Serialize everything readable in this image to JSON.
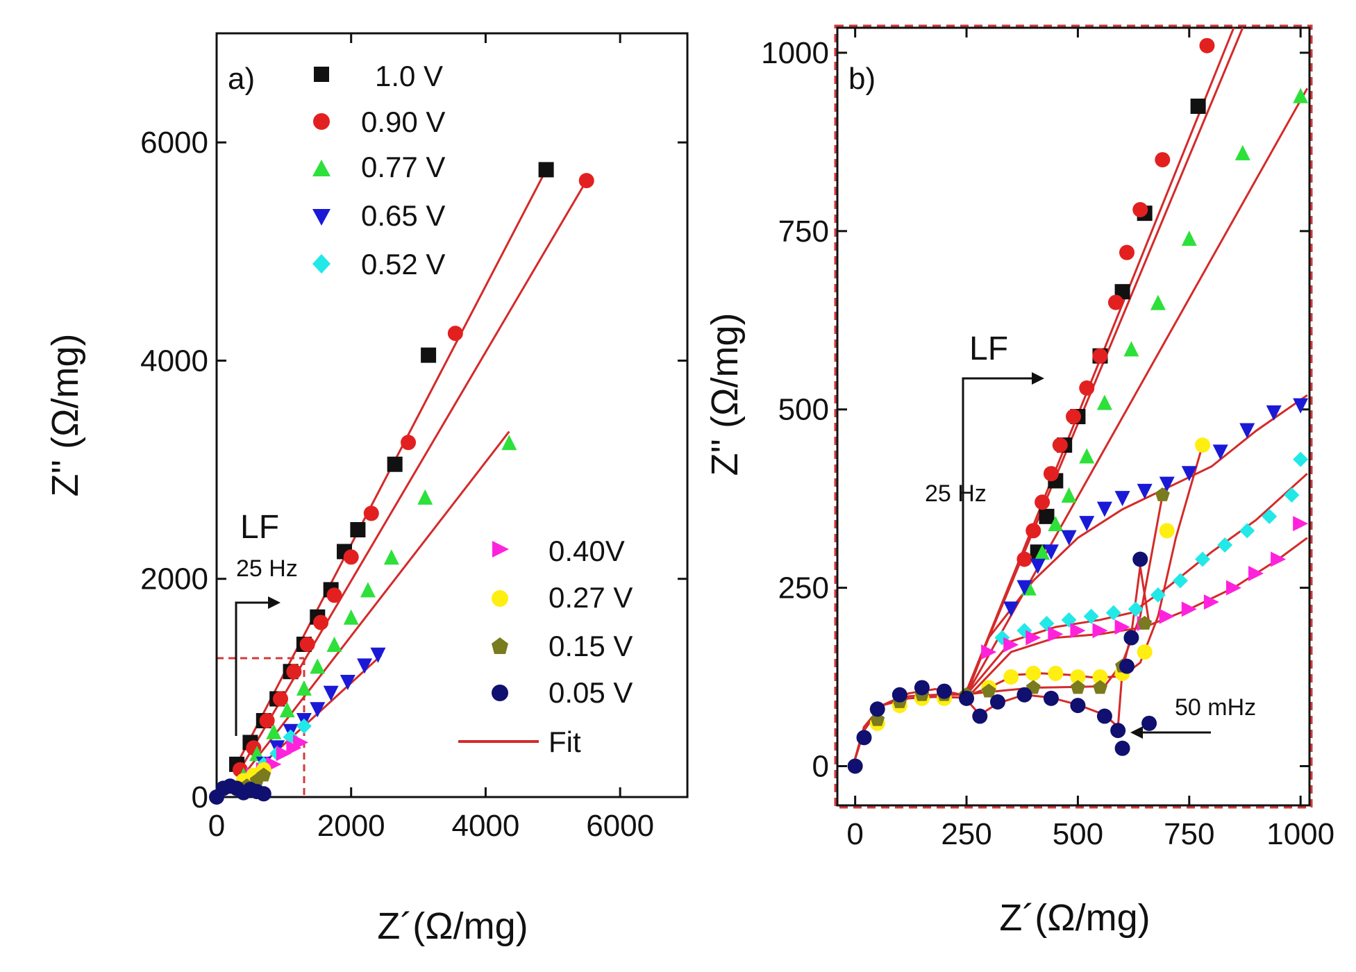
{
  "colors": {
    "fit": "#d42a2a",
    "s_1_0": "#111111",
    "s_0_90": "#e32020",
    "s_0_77": "#2ee03a",
    "s_0_65": "#1a1ad6",
    "s_0_52": "#22e8e8",
    "s_0_40": "#ff22dd",
    "s_0_27": "#ffee11",
    "s_0_15": "#7a7a1e",
    "s_0_05": "#101070",
    "dash": "#d33a3a"
  },
  "chart_data": [
    {
      "id": "a",
      "type": "scatter",
      "panel_label": "a)",
      "xlabel": "Z´(Ω/mg)",
      "ylabel": "Z'' (Ω/mg)",
      "xlim": [
        0,
        7000
      ],
      "ylim": [
        0,
        7000
      ],
      "xticks": [
        0,
        2000,
        4000,
        6000
      ],
      "yticks": [
        0,
        2000,
        4000,
        6000
      ],
      "xtick_labels": [
        "0",
        "2000",
        "4000",
        "6000"
      ],
      "ytick_labels": [
        "0",
        "2000",
        "4000",
        "6000"
      ],
      "legend_top": [
        "1.0 V",
        "0.90 V",
        "0.77 V",
        "0.65 V",
        "0.52 V"
      ],
      "legend_bottom": [
        "0.40V",
        "0.27 V",
        "0.15 V",
        "0.05 V",
        "Fit"
      ],
      "annotations": {
        "lf": "LF",
        "freq": "25 Hz"
      },
      "series": [
        {
          "name": "1.0 V",
          "marker": "square",
          "x": [
            300,
            500,
            700,
            900,
            1100,
            1300,
            1500,
            1700,
            1900,
            2100,
            2650,
            3150,
            4900
          ],
          "y": [
            300,
            500,
            700,
            900,
            1150,
            1400,
            1650,
            1900,
            2250,
            2450,
            3050,
            4050,
            5750
          ]
        },
        {
          "name": "0.90 V",
          "marker": "circle",
          "x": [
            350,
            550,
            750,
            950,
            1150,
            1350,
            1550,
            1750,
            2000,
            2300,
            2850,
            3550,
            5500
          ],
          "y": [
            250,
            450,
            700,
            900,
            1150,
            1400,
            1600,
            1850,
            2200,
            2600,
            3250,
            4250,
            5650
          ]
        },
        {
          "name": "0.77 V",
          "marker": "triangle-up",
          "x": [
            400,
            600,
            850,
            1050,
            1300,
            1500,
            1750,
            2000,
            2250,
            2600,
            3100,
            4350
          ],
          "y": [
            200,
            400,
            600,
            800,
            1000,
            1200,
            1400,
            1650,
            1900,
            2200,
            2750,
            3250
          ]
        },
        {
          "name": "0.65 V",
          "marker": "triangle-down",
          "x": [
            500,
            700,
            900,
            1100,
            1300,
            1500,
            1700,
            1950,
            2200,
            2400
          ],
          "y": [
            150,
            300,
            450,
            600,
            700,
            800,
            950,
            1050,
            1200,
            1300
          ]
        },
        {
          "name": "0.52 V",
          "marker": "diamond",
          "x": [
            500,
            700,
            900,
            1100,
            1300
          ],
          "y": [
            200,
            300,
            400,
            550,
            650
          ]
        },
        {
          "name": "0.40V",
          "marker": "triangle-right",
          "x": [
            550,
            700,
            850,
            1000,
            1150,
            1250
          ],
          "y": [
            200,
            250,
            300,
            400,
            450,
            500
          ]
        },
        {
          "name": "0.27 V",
          "marker": "circle",
          "x": [
            400,
            550,
            700
          ],
          "y": [
            150,
            200,
            250
          ]
        },
        {
          "name": "0.15 V",
          "marker": "pentagon",
          "x": [
            450,
            600,
            700
          ],
          "y": [
            100,
            150,
            200
          ]
        },
        {
          "name": "0.05 V",
          "marker": "circle",
          "x": [
            0,
            100,
            200,
            300,
            400,
            500,
            600,
            700
          ],
          "y": [
            0,
            80,
            100,
            80,
            40,
            70,
            50,
            30
          ]
        }
      ],
      "fits": [
        {
          "name": "Fit 1.0 V",
          "x": [
            300,
            4900
          ],
          "y": [
            300,
            5750
          ]
        },
        {
          "name": "Fit 0.90 V",
          "x": [
            300,
            5500
          ],
          "y": [
            200,
            5650
          ]
        },
        {
          "name": "Fit 0.77 V",
          "x": [
            400,
            4350
          ],
          "y": [
            200,
            3350
          ]
        },
        {
          "name": "Fit 0.65 V",
          "x": [
            500,
            2450
          ],
          "y": [
            200,
            1300
          ]
        }
      ]
    },
    {
      "id": "b",
      "type": "scatter",
      "panel_label": "b)",
      "xlabel": "Z´(Ω/mg)",
      "ylabel": "Z'' (Ω/mg)",
      "xlim": [
        -40,
        1020
      ],
      "ylim": [
        -55,
        1035
      ],
      "xticks": [
        0,
        250,
        500,
        750,
        1000
      ],
      "yticks": [
        0,
        250,
        500,
        750,
        1000
      ],
      "xtick_labels": [
        "0",
        "250",
        "500",
        "750",
        "1000"
      ],
      "ytick_labels": [
        "0",
        "250",
        "500",
        "750",
        "1000"
      ],
      "annotations": {
        "lf": "LF",
        "freq_hf": "25 Hz",
        "freq_lf": "50 mHz"
      },
      "series": [
        {
          "name": "1.0 V",
          "marker": "square",
          "x": [
            410,
            430,
            450,
            470,
            500,
            550,
            600,
            650,
            770
          ],
          "y": [
            300,
            350,
            400,
            450,
            490,
            575,
            665,
            775,
            925
          ]
        },
        {
          "name": "0.90 V",
          "marker": "circle",
          "x": [
            380,
            400,
            420,
            440,
            460,
            490,
            520,
            550,
            585,
            610,
            640,
            690,
            790
          ],
          "y": [
            290,
            330,
            370,
            410,
            450,
            490,
            530,
            575,
            650,
            720,
            780,
            850,
            1010
          ]
        },
        {
          "name": "0.77 V",
          "marker": "triangle-up",
          "x": [
            390,
            420,
            450,
            480,
            520,
            560,
            620,
            680,
            750,
            870,
            1000
          ],
          "y": [
            250,
            300,
            340,
            380,
            435,
            510,
            585,
            650,
            740,
            860,
            940
          ]
        },
        {
          "name": "0.65 V",
          "marker": "triangle-down",
          "x": [
            350,
            380,
            410,
            440,
            480,
            520,
            560,
            600,
            650,
            700,
            750,
            820,
            880,
            940,
            1000
          ],
          "y": [
            220,
            250,
            280,
            300,
            320,
            340,
            360,
            375,
            385,
            395,
            410,
            440,
            470,
            495,
            505
          ]
        },
        {
          "name": "0.52 V",
          "marker": "diamond",
          "x": [
            330,
            380,
            430,
            480,
            530,
            580,
            630,
            680,
            730,
            780,
            830,
            880,
            930,
            980,
            1000
          ],
          "y": [
            180,
            190,
            200,
            205,
            210,
            215,
            220,
            240,
            260,
            290,
            310,
            330,
            350,
            380,
            430
          ]
        },
        {
          "name": "0.40V",
          "marker": "triangle-right",
          "x": [
            300,
            350,
            400,
            450,
            500,
            550,
            600,
            650,
            700,
            750,
            800,
            850,
            900,
            950,
            1000
          ],
          "y": [
            160,
            170,
            180,
            185,
            190,
            190,
            195,
            200,
            210,
            220,
            230,
            250,
            270,
            290,
            340
          ]
        },
        {
          "name": "0.27 V",
          "marker": "circle",
          "x": [
            0,
            50,
            100,
            150,
            200,
            250,
            300,
            350,
            400,
            450,
            500,
            550,
            600,
            650,
            700,
            780
          ],
          "y": [
            0,
            60,
            85,
            95,
            95,
            95,
            110,
            125,
            130,
            130,
            125,
            125,
            130,
            160,
            330,
            450
          ]
        },
        {
          "name": "0.15 V",
          "marker": "pentagon",
          "x": [
            0,
            50,
            100,
            150,
            200,
            250,
            300,
            400,
            500,
            550,
            600,
            650,
            690
          ],
          "y": [
            0,
            65,
            90,
            100,
            100,
            100,
            105,
            110,
            110,
            110,
            140,
            200,
            380
          ]
        },
        {
          "name": "0.05 V",
          "marker": "circle",
          "x": [
            0,
            20,
            50,
            100,
            150,
            200,
            250,
            280,
            320,
            380,
            440,
            500,
            560,
            590,
            600,
            610,
            620,
            640,
            660
          ],
          "y": [
            0,
            40,
            80,
            100,
            110,
            105,
            95,
            70,
            90,
            100,
            95,
            85,
            70,
            50,
            25,
            140,
            180,
            290,
            60
          ]
        }
      ],
      "fits": [
        {
          "name": "Fit 1.0 V",
          "x": [
            250,
            870
          ],
          "y": [
            105,
            1035
          ]
        },
        {
          "name": "Fit 0.90 V",
          "x": [
            250,
            850
          ],
          "y": [
            105,
            1035
          ]
        },
        {
          "name": "Fit 0.77 V",
          "x": [
            250,
            1015
          ],
          "y": [
            100,
            950
          ]
        },
        {
          "name": "Fit 0.65 V",
          "x": [
            250,
            300,
            400,
            500,
            600,
            700,
            800,
            900,
            1015
          ],
          "y": [
            100,
            180,
            260,
            320,
            360,
            390,
            420,
            470,
            520
          ]
        },
        {
          "name": "Fit 0.52 V",
          "x": [
            250,
            350,
            450,
            550,
            620,
            700,
            800,
            900,
            1015
          ],
          "y": [
            100,
            175,
            195,
            205,
            215,
            250,
            300,
            345,
            410
          ]
        },
        {
          "name": "Fit 0.40V",
          "x": [
            250,
            350,
            450,
            550,
            650,
            750,
            850,
            950,
            1015
          ],
          "y": [
            95,
            160,
            180,
            185,
            195,
            220,
            250,
            290,
            320
          ]
        },
        {
          "name": "Fit 0.27 V",
          "x": [
            -5,
            20,
            60,
            120,
            180,
            240,
            300,
            360,
            420,
            480,
            540,
            600,
            640,
            680,
            720,
            780
          ],
          "y": [
            0,
            55,
            85,
            95,
            97,
            96,
            110,
            128,
            130,
            128,
            124,
            126,
            145,
            210,
            320,
            450
          ]
        },
        {
          "name": "Fit 0.15 V",
          "x": [
            -5,
            20,
            60,
            120,
            180,
            240,
            300,
            400,
            500,
            560,
            600,
            640,
            690
          ],
          "y": [
            0,
            55,
            85,
            98,
            100,
            100,
            104,
            110,
            111,
            112,
            145,
            210,
            380
          ]
        },
        {
          "name": "Fit 0.05 V",
          "x": [
            -5,
            20,
            60,
            120,
            180,
            240,
            280,
            320,
            380,
            440,
            500,
            560,
            590,
            600,
            620,
            640,
            660
          ],
          "y": [
            0,
            50,
            85,
            102,
            108,
            100,
            72,
            88,
            100,
            96,
            86,
            72,
            55,
            135,
            185,
            280,
            200
          ]
        }
      ]
    }
  ]
}
